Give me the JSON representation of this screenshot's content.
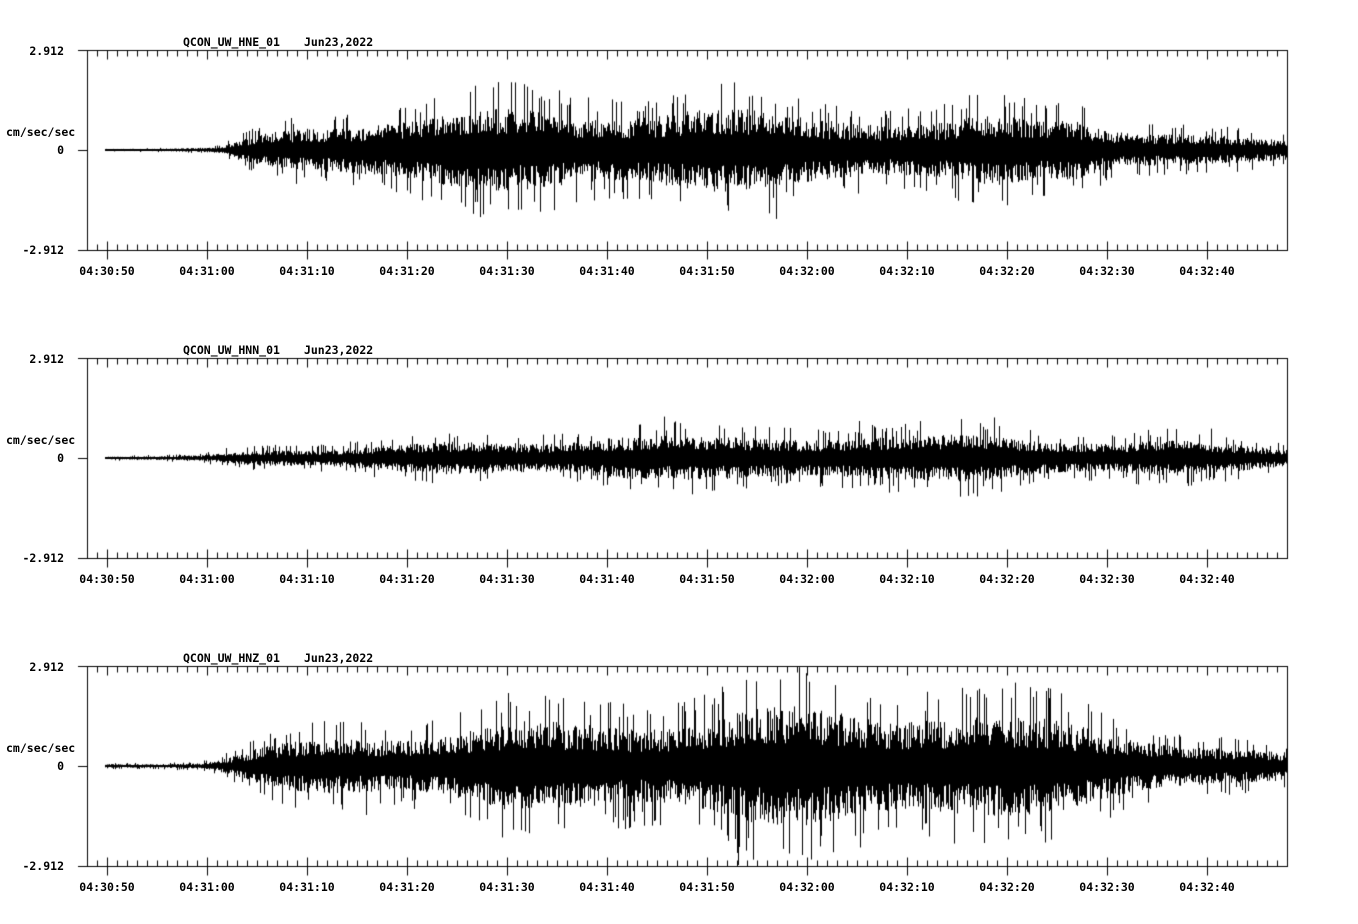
{
  "page": {
    "background_color": "#ffffff",
    "trace_color": "#000000",
    "text_color": "#000000"
  },
  "chart_data": [
    {
      "type": "line",
      "chart_kind": "seismogram-acceleration-trace",
      "title": {
        "station": "QCON_UW_HNE_01",
        "date": "Jun23,2022"
      },
      "channel": "HNE",
      "ylabel": "cm/sec/sec",
      "y_ticks": {
        "max": "2.912",
        "zero": "0",
        "min": "-2.912"
      },
      "ylim": [
        -2.912,
        2.912
      ],
      "grid": false,
      "x_span_seconds": 120,
      "first_major_tick_offset_sec": 2,
      "x_minor_tick_interval_sec": 1,
      "x_major_tick_interval_sec": 10,
      "x_tick_labels": [
        "04:30:50",
        "04:31:00",
        "04:31:10",
        "04:31:20",
        "04:31:30",
        "04:31:40",
        "04:31:50",
        "04:32:00",
        "04:32:10",
        "04:32:20",
        "04:32:30",
        "04:32:40"
      ],
      "trace_start_sec": 1.8,
      "seed": 101,
      "envelope": {
        "t_seconds": [
          0,
          6,
          11,
          13.5,
          15,
          18,
          22,
          27,
          33,
          40,
          47,
          54,
          62,
          70,
          78,
          85,
          90,
          95,
          99,
          103,
          107,
          111,
          115,
          120
        ],
        "amplitude_cm_s2": [
          0.09,
          0.1,
          0.13,
          0.18,
          0.55,
          1.0,
          1.45,
          1.85,
          1.8,
          1.9,
          1.85,
          1.75,
          1.85,
          1.7,
          1.8,
          1.6,
          1.95,
          1.8,
          2.3,
          1.6,
          1.2,
          0.95,
          0.7,
          0.55
        ]
      }
    },
    {
      "type": "line",
      "chart_kind": "seismogram-acceleration-trace",
      "title": {
        "station": "QCON_UW_HNN_01",
        "date": "Jun23,2022"
      },
      "channel": "HNN",
      "ylabel": "cm/sec/sec",
      "y_ticks": {
        "max": "2.912",
        "zero": "0",
        "min": "-2.912"
      },
      "ylim": [
        -2.912,
        2.912
      ],
      "grid": false,
      "x_span_seconds": 120,
      "first_major_tick_offset_sec": 2,
      "x_minor_tick_interval_sec": 1,
      "x_major_tick_interval_sec": 10,
      "x_tick_labels": [
        "04:30:50",
        "04:31:00",
        "04:31:10",
        "04:31:20",
        "04:31:30",
        "04:31:40",
        "04:31:50",
        "04:32:00",
        "04:32:10",
        "04:32:20",
        "04:32:30",
        "04:32:40"
      ],
      "trace_start_sec": 1.8,
      "seed": 202,
      "envelope": {
        "t_seconds": [
          0,
          6,
          11,
          14,
          18,
          24,
          30,
          38,
          46,
          52,
          56,
          62,
          70,
          78,
          84,
          90,
          96,
          102,
          108,
          114,
          120
        ],
        "amplitude_cm_s2": [
          0.07,
          0.09,
          0.13,
          0.3,
          0.55,
          0.75,
          0.85,
          0.95,
          1.05,
          1.25,
          1.1,
          0.95,
          1.0,
          1.05,
          1.0,
          1.1,
          1.05,
          1.0,
          1.0,
          0.85,
          0.7
        ]
      }
    },
    {
      "type": "line",
      "chart_kind": "seismogram-acceleration-trace",
      "title": {
        "station": "QCON_UW_HNZ_01",
        "date": "Jun23,2022"
      },
      "channel": "HNZ",
      "ylabel": "cm/sec/sec",
      "y_ticks": {
        "max": "2.912",
        "zero": "0",
        "min": "-2.912"
      },
      "ylim": [
        -2.912,
        2.912
      ],
      "grid": false,
      "x_span_seconds": 120,
      "first_major_tick_offset_sec": 2,
      "x_minor_tick_interval_sec": 1,
      "x_major_tick_interval_sec": 10,
      "x_tick_labels": [
        "04:30:50",
        "04:31:00",
        "04:31:10",
        "04:31:20",
        "04:31:30",
        "04:31:40",
        "04:31:50",
        "04:32:00",
        "04:32:10",
        "04:32:20",
        "04:32:30",
        "04:32:40"
      ],
      "trace_start_sec": 1.8,
      "seed": 303,
      "envelope": {
        "t_seconds": [
          0,
          6,
          11,
          13,
          16,
          20,
          25,
          30,
          36,
          42,
          48,
          54,
          60,
          66,
          72,
          78,
          84,
          90,
          96,
          102,
          107,
          111,
          115,
          120
        ],
        "amplitude_cm_s2": [
          0.1,
          0.12,
          0.16,
          0.3,
          0.8,
          1.3,
          1.8,
          2.2,
          2.35,
          2.5,
          2.4,
          2.55,
          2.45,
          2.6,
          2.65,
          2.5,
          2.6,
          2.4,
          2.2,
          2.0,
          1.7,
          1.4,
          1.05,
          0.8
        ]
      }
    }
  ]
}
